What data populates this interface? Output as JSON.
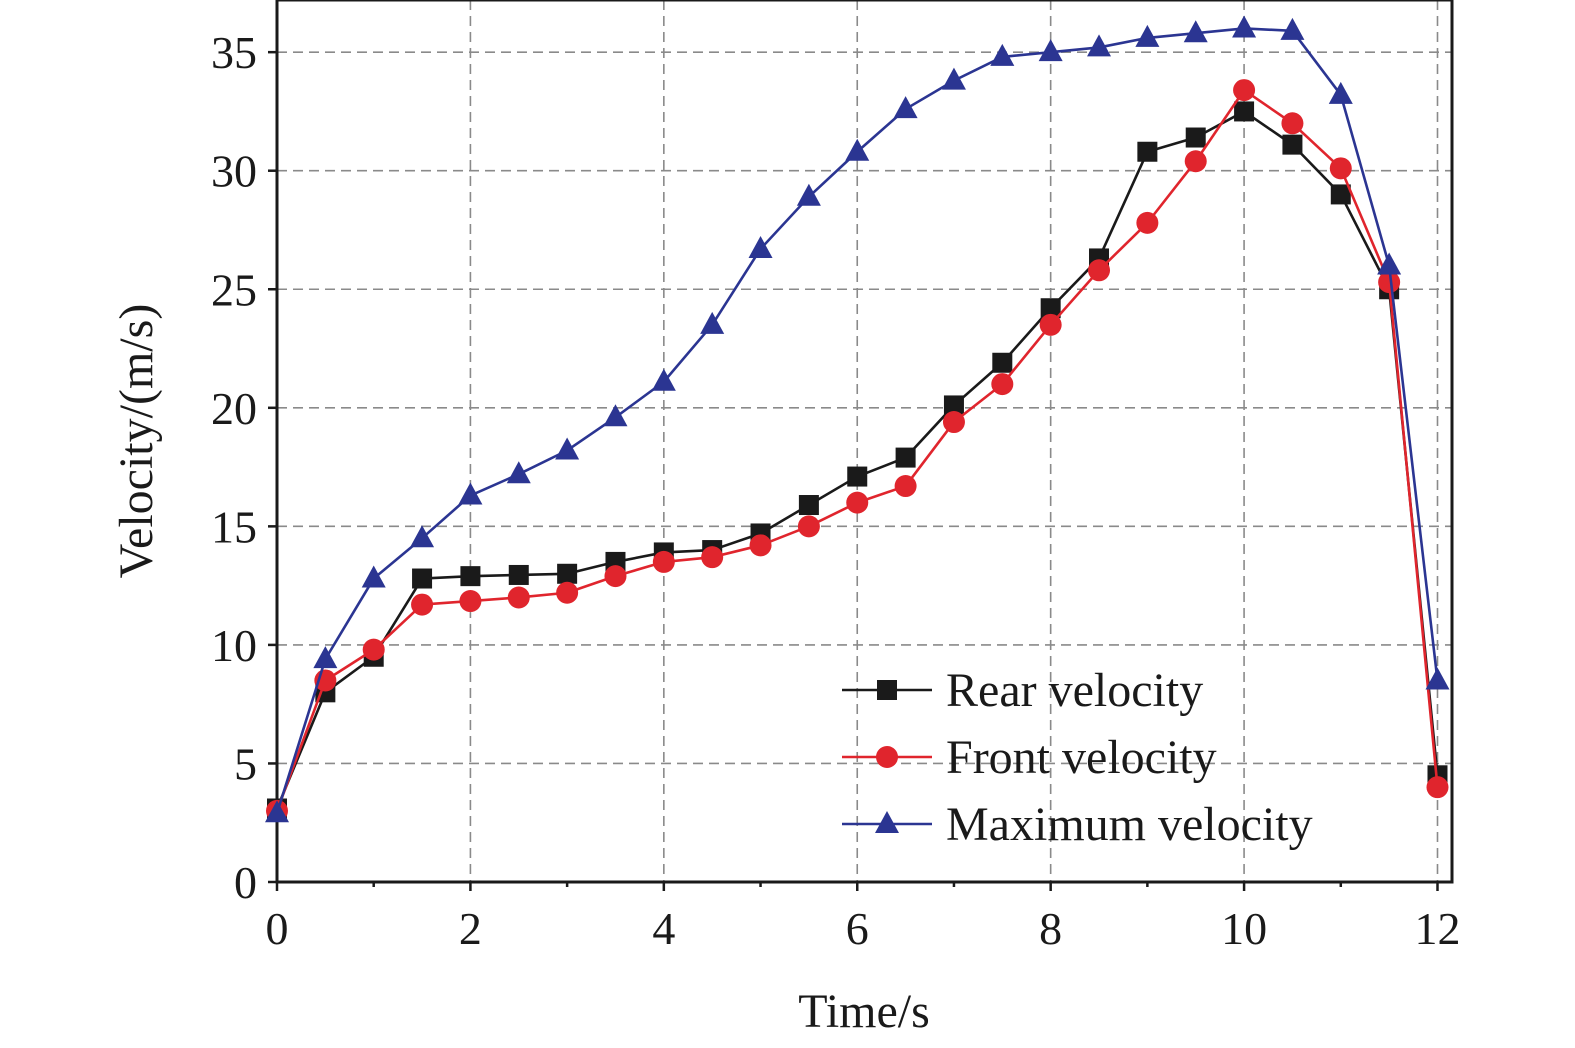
{
  "chart_data": {
    "type": "line",
    "title": "",
    "xlabel": "Time/s",
    "ylabel": "Velocity/(m/s)",
    "xlim": [
      0,
      12.15
    ],
    "ylim": [
      0,
      37.2
    ],
    "xticks": [
      0,
      2,
      4,
      6,
      8,
      10,
      12
    ],
    "yticks": [
      0,
      5,
      10,
      15,
      20,
      25,
      30,
      35
    ],
    "grid": true,
    "legend_position": "bottom-right",
    "x": [
      0,
      0.5,
      1,
      1.5,
      2,
      2.5,
      3,
      3.5,
      4,
      4.5,
      5,
      5.5,
      6,
      6.5,
      7,
      7.5,
      8,
      8.5,
      9,
      9.5,
      10,
      10.5,
      11,
      11.5,
      12
    ],
    "series": [
      {
        "name": "Rear velocity",
        "color": "#1a1a1a",
        "marker": "square",
        "values": [
          3.1,
          8.0,
          9.5,
          12.8,
          12.9,
          12.95,
          13.0,
          13.5,
          13.9,
          14.0,
          14.7,
          15.9,
          17.1,
          17.9,
          20.1,
          21.9,
          24.2,
          26.3,
          30.8,
          31.4,
          32.5,
          31.1,
          29.0,
          25.0,
          4.5
        ]
      },
      {
        "name": "Front velocity",
        "color": "#e0252d",
        "marker": "circle",
        "values": [
          3.0,
          8.5,
          9.8,
          11.7,
          11.85,
          12.0,
          12.2,
          12.9,
          13.5,
          13.7,
          14.2,
          15.0,
          16.0,
          16.7,
          19.4,
          21.0,
          23.5,
          25.8,
          27.8,
          30.4,
          33.4,
          32.0,
          30.1,
          25.3,
          4.0
        ]
      },
      {
        "name": "Maximum velocity",
        "color": "#2b3592",
        "marker": "triangle",
        "values": [
          2.9,
          9.4,
          12.8,
          14.5,
          16.3,
          17.2,
          18.2,
          19.6,
          21.1,
          23.5,
          26.7,
          28.9,
          30.8,
          32.6,
          33.8,
          34.8,
          35.0,
          35.2,
          35.6,
          35.8,
          36.0,
          35.9,
          33.2,
          26.0,
          8.5
        ]
      }
    ]
  }
}
